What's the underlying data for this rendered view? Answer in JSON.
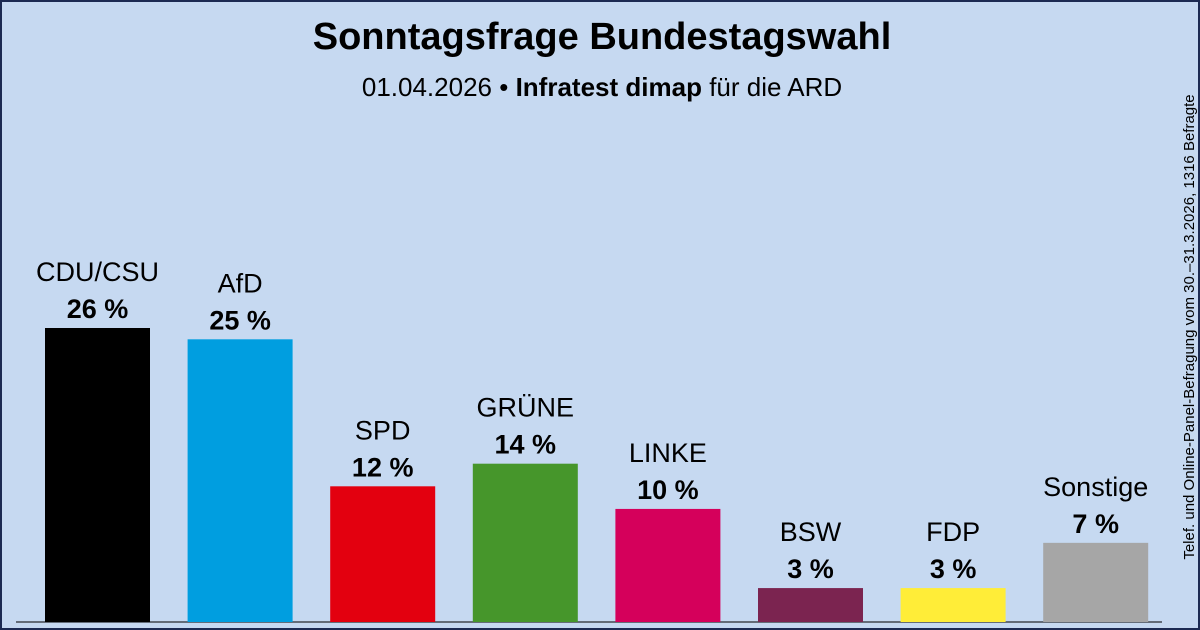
{
  "title": "Sonntagsfrage Bundestagswahl",
  "subtitle": {
    "date": "01.04.2026",
    "separator": "•",
    "institute": "Infratest dimap",
    "client": "für die ARD"
  },
  "source_note": "Telef. und Online-Panel-Befragung vom 30.–31.3.2026, 1316 Befragte",
  "chart_data": {
    "type": "bar",
    "title": "Sonntagsfrage Bundestagswahl",
    "xlabel": "",
    "ylabel": "",
    "ylim": [
      0,
      26
    ],
    "value_suffix": " %",
    "categories": [
      "CDU/CSU",
      "AfD",
      "SPD",
      "GRÜNE",
      "LINKE",
      "BSW",
      "FDP",
      "Sonstige"
    ],
    "values": [
      26,
      25,
      12,
      14,
      10,
      3,
      3,
      7
    ],
    "colors": [
      "#000000",
      "#009ee0",
      "#e3000f",
      "#46962b",
      "#d5005b",
      "#7b2450",
      "#ffed38",
      "#a6a6a6"
    ]
  }
}
